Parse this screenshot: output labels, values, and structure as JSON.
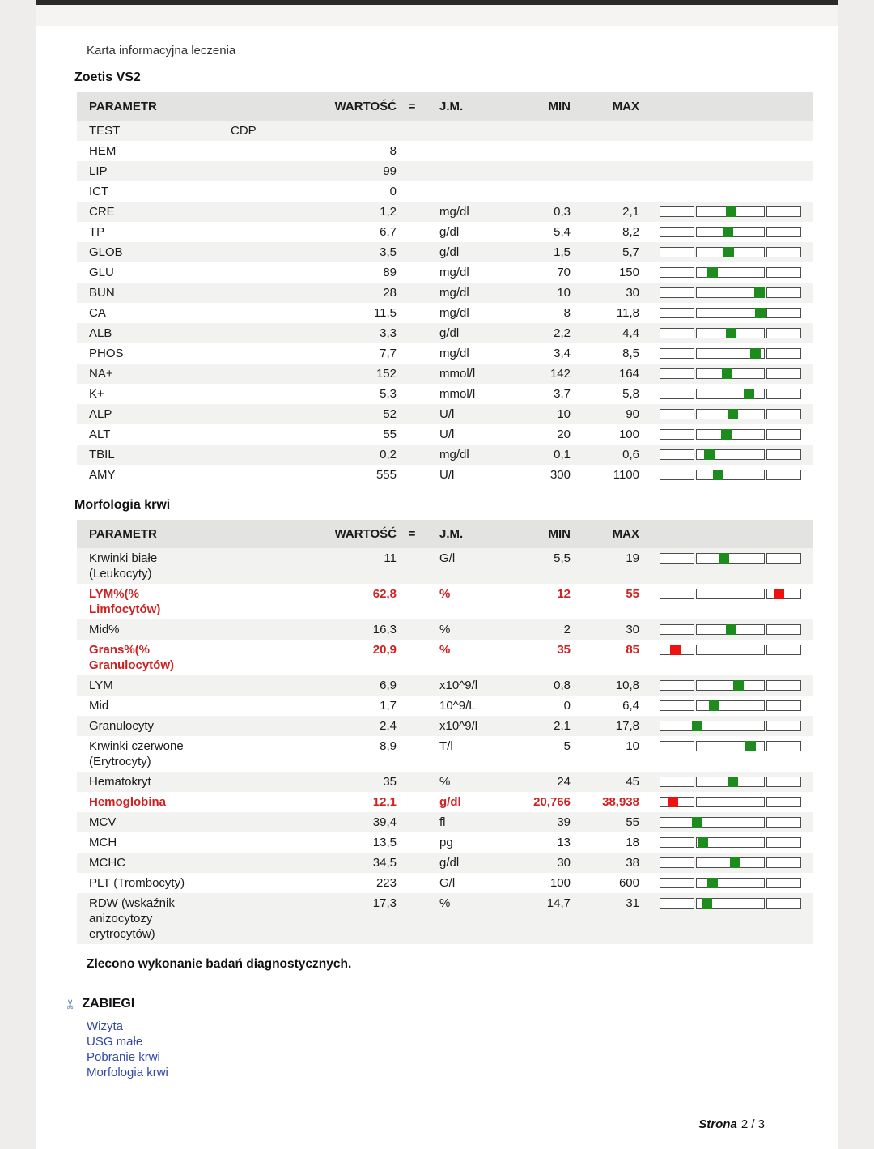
{
  "page": {
    "title": "Karta informacyjna leczenia",
    "footer": {
      "label": "Strona",
      "value": "2 / 3"
    }
  },
  "colors": {
    "in_range_marker": "#1e8b1e",
    "out_of_range_marker": "#ee1111",
    "alert_text": "#cf2121",
    "link_blue": "#3347a5",
    "stripe_gray": "#f2f2f0",
    "header_gray": "#e3e3e1"
  },
  "note": "Zlecono wykonanie badań diagnostycznych.",
  "zabiegi": {
    "title": "ZABIEGI",
    "icon": "scissors-icon",
    "icon_glyph": "✂",
    "links": [
      "Wizyta",
      "USG małe",
      "Pobranie krwi",
      "Morfologia krwi"
    ]
  },
  "tables": [
    {
      "section_title": "Zoetis VS2",
      "headers": {
        "param": "PARAMETR",
        "value": "WARTOŚĆ",
        "eq": "=",
        "unit": "J.M.",
        "min": "MIN",
        "max": "MAX"
      },
      "rows": [
        {
          "param": "TEST",
          "text": "CDP"
        },
        {
          "param": "HEM",
          "value": "8"
        },
        {
          "param": "LIP",
          "value": "99"
        },
        {
          "param": "ICT",
          "value": "0"
        },
        {
          "param": "CRE",
          "value": "1,2",
          "unit": "mg/dl",
          "min": "0,3",
          "max": "2,1",
          "value_n": 1.2,
          "min_n": 0.3,
          "max_n": 2.1
        },
        {
          "param": "TP",
          "value": "6,7",
          "unit": "g/dl",
          "min": "5,4",
          "max": "8,2",
          "value_n": 6.7,
          "min_n": 5.4,
          "max_n": 8.2
        },
        {
          "param": "GLOB",
          "value": "3,5",
          "unit": "g/dl",
          "min": "1,5",
          "max": "5,7",
          "value_n": 3.5,
          "min_n": 1.5,
          "max_n": 5.7
        },
        {
          "param": "GLU",
          "value": "89",
          "unit": "mg/dl",
          "min": "70",
          "max": "150",
          "value_n": 89,
          "min_n": 70,
          "max_n": 150
        },
        {
          "param": "BUN",
          "value": "28",
          "unit": "mg/dl",
          "min": "10",
          "max": "30",
          "value_n": 28,
          "min_n": 10,
          "max_n": 30
        },
        {
          "param": "CA",
          "value": "11,5",
          "unit": "mg/dl",
          "min": "8",
          "max": "11,8",
          "value_n": 11.5,
          "min_n": 8,
          "max_n": 11.8
        },
        {
          "param": "ALB",
          "value": "3,3",
          "unit": "g/dl",
          "min": "2,2",
          "max": "4,4",
          "value_n": 3.3,
          "min_n": 2.2,
          "max_n": 4.4
        },
        {
          "param": "PHOS",
          "value": "7,7",
          "unit": "mg/dl",
          "min": "3,4",
          "max": "8,5",
          "value_n": 7.7,
          "min_n": 3.4,
          "max_n": 8.5
        },
        {
          "param": "NA+",
          "value": "152",
          "unit": "mmol/l",
          "min": "142",
          "max": "164",
          "value_n": 152,
          "min_n": 142,
          "max_n": 164
        },
        {
          "param": "K+",
          "value": "5,3",
          "unit": "mmol/l",
          "min": "3,7",
          "max": "5,8",
          "value_n": 5.3,
          "min_n": 3.7,
          "max_n": 5.8
        },
        {
          "param": "ALP",
          "value": "52",
          "unit": "U/l",
          "min": "10",
          "max": "90",
          "value_n": 52,
          "min_n": 10,
          "max_n": 90
        },
        {
          "param": "ALT",
          "value": "55",
          "unit": "U/l",
          "min": "20",
          "max": "100",
          "value_n": 55,
          "min_n": 20,
          "max_n": 100
        },
        {
          "param": "TBIL",
          "value": "0,2",
          "unit": "mg/dl",
          "min": "0,1",
          "max": "0,6",
          "value_n": 0.2,
          "min_n": 0.1,
          "max_n": 0.6
        },
        {
          "param": "AMY",
          "value": "555",
          "unit": "U/l",
          "min": "300",
          "max": "1100",
          "value_n": 555,
          "min_n": 300,
          "max_n": 1100
        }
      ]
    },
    {
      "section_title": "Morfologia krwi",
      "headers": {
        "param": "PARAMETR",
        "value": "WARTOŚĆ",
        "eq": "=",
        "unit": "J.M.",
        "min": "MIN",
        "max": "MAX"
      },
      "rows": [
        {
          "param": "Krwinki białe\n(Leukocyty)",
          "value": "11",
          "unit": "G/l",
          "min": "5,5",
          "max": "19",
          "value_n": 11,
          "min_n": 5.5,
          "max_n": 19
        },
        {
          "param": "LYM%(%\nLimfocytów)",
          "value": "62,8",
          "unit": "%",
          "min": "12",
          "max": "55",
          "value_n": 62.8,
          "min_n": 12,
          "max_n": 55
        },
        {
          "param": "Mid%",
          "value": "16,3",
          "unit": "%",
          "min": "2",
          "max": "30",
          "value_n": 16.3,
          "min_n": 2,
          "max_n": 30
        },
        {
          "param": "Grans%(%\nGranulocytów)",
          "value": "20,9",
          "unit": "%",
          "min": "35",
          "max": "85",
          "value_n": 20.9,
          "min_n": 35,
          "max_n": 85
        },
        {
          "param": "LYM",
          "value": "6,9",
          "unit": "x10^9/l",
          "min": "0,8",
          "max": "10,8",
          "value_n": 6.9,
          "min_n": 0.8,
          "max_n": 10.8
        },
        {
          "param": "Mid",
          "value": "1,7",
          "unit": "10^9/L",
          "min": "0",
          "max": "6,4",
          "value_n": 1.7,
          "min_n": 0,
          "max_n": 6.4
        },
        {
          "param": "Granulocyty",
          "value": "2,4",
          "unit": "x10^9/l",
          "min": "2,1",
          "max": "17,8",
          "value_n": 2.4,
          "min_n": 2.1,
          "max_n": 17.8
        },
        {
          "param": "Krwinki czerwone\n(Erytrocyty)",
          "value": "8,9",
          "unit": "T/l",
          "min": "5",
          "max": "10",
          "value_n": 8.9,
          "min_n": 5,
          "max_n": 10
        },
        {
          "param": "Hematokryt",
          "value": "35",
          "unit": "%",
          "min": "24",
          "max": "45",
          "value_n": 35,
          "min_n": 24,
          "max_n": 45
        },
        {
          "param": "Hemoglobina",
          "value": "12,1",
          "unit": "g/dl",
          "min": "20,766",
          "max": "38,938",
          "value_n": 12.1,
          "min_n": 20.766,
          "max_n": 38.938
        },
        {
          "param": "MCV",
          "value": "39,4",
          "unit": "fl",
          "min": "39",
          "max": "55",
          "value_n": 39.4,
          "min_n": 39,
          "max_n": 55
        },
        {
          "param": "MCH",
          "value": "13,5",
          "unit": "pg",
          "min": "13",
          "max": "18",
          "value_n": 13.5,
          "min_n": 13,
          "max_n": 18
        },
        {
          "param": "MCHC",
          "value": "34,5",
          "unit": "g/dl",
          "min": "30",
          "max": "38",
          "value_n": 34.5,
          "min_n": 30,
          "max_n": 38
        },
        {
          "param": "PLT (Trombocyty)",
          "value": "223",
          "unit": "G/l",
          "min": "100",
          "max": "600",
          "value_n": 223,
          "min_n": 100,
          "max_n": 600
        },
        {
          "param": "RDW (wskaźnik\nanizocytozy\nerytrocytów)",
          "value": "17,3",
          "unit": "%",
          "min": "14,7",
          "max": "31",
          "value_n": 17.3,
          "min_n": 14.7,
          "max_n": 31
        }
      ]
    }
  ]
}
